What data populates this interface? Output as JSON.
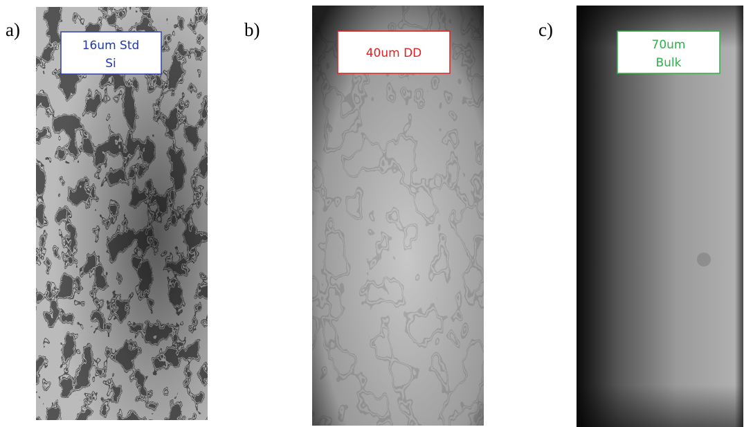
{
  "panels": [
    {
      "letter": "a)",
      "label_lines": [
        "16um Std",
        "Si"
      ]
    },
    {
      "letter": "b)",
      "label_lines": [
        "40um DD"
      ]
    },
    {
      "letter": "c)",
      "label_lines": [
        "70um",
        "Bulk"
      ]
    }
  ]
}
